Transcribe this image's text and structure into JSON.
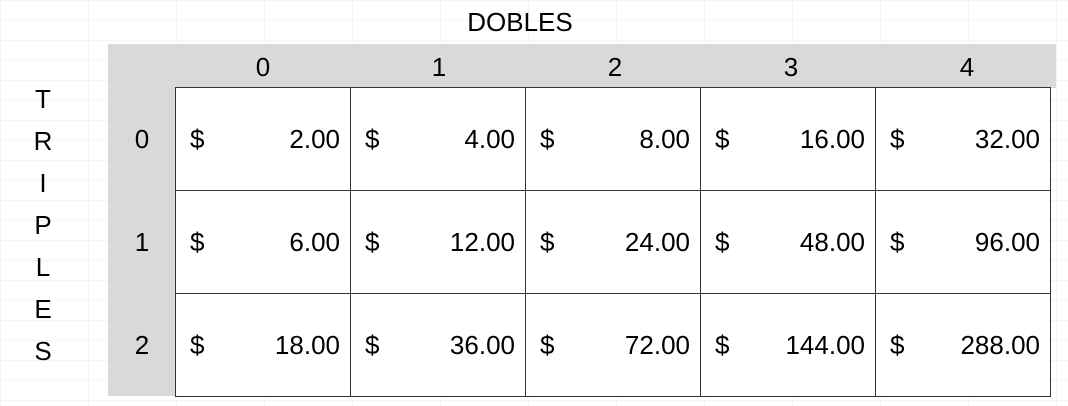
{
  "header": {
    "columns_title": "DOBLES"
  },
  "side": {
    "letters": [
      "T",
      "R",
      "I",
      "P",
      "L",
      "E",
      "S"
    ]
  },
  "table": {
    "columns": [
      "0",
      "1",
      "2",
      "3",
      "4"
    ],
    "rows": [
      {
        "label": "0",
        "cells": [
          {
            "currency": "$",
            "amount": "2.00"
          },
          {
            "currency": "$",
            "amount": "4.00"
          },
          {
            "currency": "$",
            "amount": "8.00"
          },
          {
            "currency": "$",
            "amount": "16.00"
          },
          {
            "currency": "$",
            "amount": "32.00"
          }
        ]
      },
      {
        "label": "1",
        "cells": [
          {
            "currency": "$",
            "amount": "6.00"
          },
          {
            "currency": "$",
            "amount": "12.00"
          },
          {
            "currency": "$",
            "amount": "24.00"
          },
          {
            "currency": "$",
            "amount": "48.00"
          },
          {
            "currency": "$",
            "amount": "96.00"
          }
        ]
      },
      {
        "label": "2",
        "cells": [
          {
            "currency": "$",
            "amount": "18.00"
          },
          {
            "currency": "$",
            "amount": "36.00"
          },
          {
            "currency": "$",
            "amount": "72.00"
          },
          {
            "currency": "$",
            "amount": "144.00"
          },
          {
            "currency": "$",
            "amount": "288.00"
          }
        ]
      }
    ]
  },
  "colors": {
    "header_shade": "#d9d9d9",
    "border": "#333333"
  }
}
